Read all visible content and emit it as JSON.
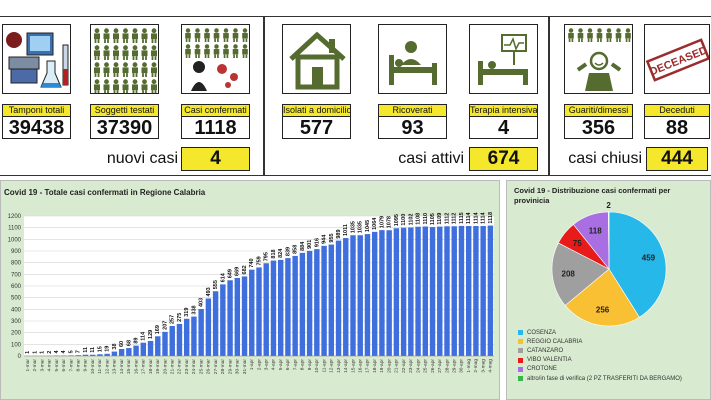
{
  "kpis": [
    {
      "label": "Tamponi totali",
      "value": "39438",
      "icon": "lab-tests-icon"
    },
    {
      "label": "Soggetti testati",
      "value": "37390",
      "icon": "tested-people-icon"
    },
    {
      "label": "Casi confermati",
      "value": "1118",
      "icon": "confirmed-cases-icon"
    },
    {
      "label": "Isolati a domicilio",
      "value": "577",
      "icon": "home-icon"
    },
    {
      "label": "Ricoverati",
      "value": "93",
      "icon": "hospital-bed-icon"
    },
    {
      "label": "Terapia intensiva",
      "value": "4",
      "icon": "intensive-care-icon"
    },
    {
      "label": "Guariti/dimessi",
      "value": "356",
      "icon": "recovered-icon"
    },
    {
      "label": "Deceduti",
      "value": "88",
      "icon": "deceased-stamp-icon"
    }
  ],
  "deceased_stamp_text": "DECEASED",
  "summary": {
    "nuovi_label": "nuovi casi",
    "nuovi_value": "4",
    "attivi_label": "casi attivi",
    "attivi_value": "674",
    "chiusi_label": "casi chiusi",
    "chiusi_value": "444"
  },
  "colors": {
    "accent_yellow": "#f4e72c",
    "bar_blue": "#3f6fdc",
    "chart_bg": "#d8ead0",
    "icon_green": "#556b2f"
  },
  "chart_data": [
    {
      "type": "bar",
      "title": "Covid 19 - Totale casi confermati in Regione Calabria",
      "ylim": [
        0,
        1200
      ],
      "yticks": [
        0,
        100,
        200,
        300,
        400,
        500,
        600,
        700,
        800,
        900,
        1000,
        1100,
        1200
      ],
      "grid": true,
      "categories": [
        "1-mar",
        "2-mar",
        "3-mar",
        "4-mar",
        "5-mar",
        "6-mar",
        "7-mar",
        "8-mar",
        "9-mar",
        "10-mar",
        "11-mar",
        "12-mar",
        "13-mar",
        "14-mar",
        "15-mar",
        "16-mar",
        "17-mar",
        "18-mar",
        "19-mar",
        "20-mar",
        "21-mar",
        "22-mar",
        "23-mar",
        "24-mar",
        "25-mar",
        "26-mar",
        "27-mar",
        "28-mar",
        "29-mar",
        "30-mar",
        "31-mar",
        "1-apr",
        "2-apr",
        "3-apr",
        "4-apr",
        "5-apr",
        "6-apr",
        "7-apr",
        "8-apr",
        "9-apr",
        "10-apr",
        "11-apr",
        "12-apr",
        "13-apr",
        "14-apr",
        "15-apr",
        "16-apr",
        "17-apr",
        "18-apr",
        "19-apr",
        "20-apr",
        "21-apr",
        "22-apr",
        "23-apr",
        "24-apr",
        "25-apr",
        "26-apr",
        "27-apr",
        "28-apr",
        "29-apr",
        "30-apr",
        "1-mag",
        "2-mag",
        "3-mag",
        "4-mag"
      ],
      "values": [
        1,
        1,
        1,
        2,
        4,
        4,
        5,
        7,
        11,
        11,
        15,
        19,
        38,
        60,
        68,
        89,
        114,
        129,
        169,
        207,
        257,
        275,
        319,
        338,
        403,
        493,
        555,
        614,
        649,
        669,
        682,
        740,
        759,
        795,
        818,
        824,
        839,
        858,
        884,
        901,
        916,
        944,
        955,
        989,
        1011,
        1035,
        1035,
        1045,
        1064,
        1079,
        1078,
        1095,
        1100,
        1102,
        1108,
        1110,
        1105,
        1109,
        1112,
        1112,
        1115,
        1114,
        1114,
        1114,
        1118
      ],
      "bar_labels": [
        "1",
        "1",
        "1",
        "2",
        "4",
        "4",
        "5",
        "7",
        "11",
        "11",
        "15",
        "19",
        "38",
        "60",
        "68",
        "89",
        "114",
        "129",
        "169",
        "207",
        "257",
        "275",
        "319",
        "338",
        "403",
        "493",
        "555",
        "614",
        "649",
        "669",
        "682",
        "740",
        "759",
        "795",
        "818",
        "824",
        "839",
        "858",
        "884",
        "901",
        "916",
        "944",
        "955",
        "989",
        "1011",
        "1035",
        "1035",
        "1045",
        "1064",
        "1079",
        "1078",
        "1095",
        "1100",
        "1102",
        "1108",
        "1110",
        "1105",
        "1109",
        "1112",
        "1112",
        "1115",
        "1114",
        "1114",
        "1114",
        "1118"
      ]
    },
    {
      "type": "pie",
      "title": "Covid 19 - Distribuzione casi confermati per provinicia",
      "slices": [
        {
          "name": "COSENZA",
          "value": 459,
          "color": "#27b8ea"
        },
        {
          "name": "REGGIO CALABRIA",
          "value": 256,
          "color": "#f8c032"
        },
        {
          "name": "CATANZARO",
          "value": 208,
          "color": "#9f9f9f"
        },
        {
          "name": "VIBO VALENTIA",
          "value": 75,
          "color": "#e81b1b"
        },
        {
          "name": "CROTONE",
          "value": 118,
          "color": "#a96fe2"
        },
        {
          "name": "altro/in fase di verifica (2 PZ TRASFERITI DA BERGAMO)",
          "value": 2,
          "color": "#39b54a"
        }
      ],
      "legend_position": "bottom"
    }
  ]
}
